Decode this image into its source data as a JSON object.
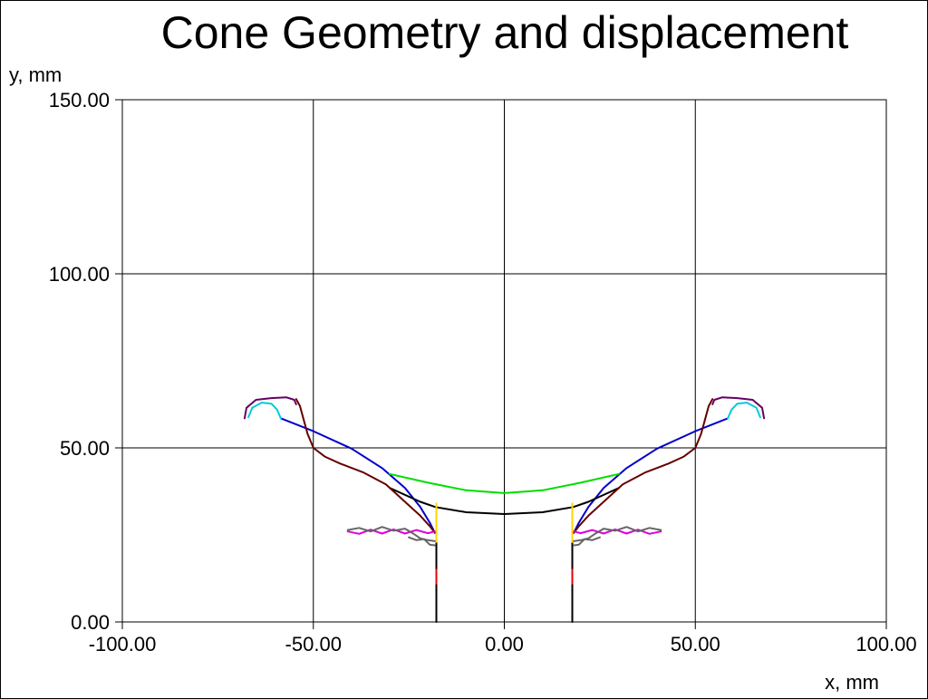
{
  "chart_data": {
    "type": "line",
    "title": "Cone Geometry and displacement",
    "xlabel": "x, mm",
    "ylabel": "y, mm",
    "xlim": [
      -100,
      100
    ],
    "ylim": [
      0,
      150
    ],
    "grid": true,
    "x_ticks": [
      "-100.00",
      "-50.00",
      "0.00",
      "50.00",
      "100.00"
    ],
    "y_ticks": [
      "0.00",
      "50.00",
      "100.00",
      "150.00"
    ],
    "series": [
      {
        "color": "#0000cc",
        "points": [
          [
            -58.5,
            58.5
          ],
          [
            -50,
            54.8
          ],
          [
            -40,
            49.8
          ],
          [
            -32,
            44.2
          ],
          [
            -26,
            38.5
          ],
          [
            -22,
            33
          ],
          [
            -19.5,
            28.5
          ],
          [
            -18.2,
            25.6
          ]
        ]
      },
      {
        "color": "#0000cc",
        "points": [
          [
            58.5,
            58.5
          ],
          [
            50,
            54.8
          ],
          [
            40,
            49.8
          ],
          [
            32,
            44.2
          ],
          [
            26,
            38.5
          ],
          [
            22,
            33
          ],
          [
            19.5,
            28.5
          ],
          [
            18.2,
            25.6
          ]
        ]
      },
      {
        "color": "#00dd00",
        "points": [
          [
            -30,
            42.5
          ],
          [
            -20,
            40
          ],
          [
            -10,
            37.8
          ],
          [
            0,
            37
          ],
          [
            10,
            37.8
          ],
          [
            20,
            40
          ],
          [
            30,
            42.5
          ]
        ]
      },
      {
        "color": "#000000",
        "points": [
          [
            -30,
            38.5
          ],
          [
            -22,
            34.5
          ],
          [
            -18,
            33
          ],
          [
            -10,
            31.5
          ],
          [
            0,
            31
          ],
          [
            10,
            31.5
          ],
          [
            18,
            33
          ],
          [
            22,
            34.5
          ],
          [
            30,
            38.5
          ]
        ]
      },
      {
        "color": "#660000",
        "points": [
          [
            -54.5,
            64
          ],
          [
            -53.5,
            62
          ],
          [
            -52.5,
            58
          ],
          [
            -51.5,
            54
          ],
          [
            -50,
            50
          ],
          [
            -47,
            47.5
          ],
          [
            -43,
            45.5
          ],
          [
            -37,
            43
          ],
          [
            -31,
            39.5
          ],
          [
            -26,
            34.5
          ],
          [
            -22,
            30.5
          ],
          [
            -19.5,
            27.5
          ],
          [
            -18.2,
            25.6
          ]
        ]
      },
      {
        "color": "#660000",
        "points": [
          [
            54.5,
            64
          ],
          [
            53.5,
            62
          ],
          [
            52.5,
            58
          ],
          [
            51.5,
            54
          ],
          [
            50,
            50
          ],
          [
            47,
            47.5
          ],
          [
            43,
            45.5
          ],
          [
            37,
            43
          ],
          [
            31,
            39.5
          ],
          [
            26,
            34.5
          ],
          [
            22,
            30.5
          ],
          [
            19.5,
            27.5
          ],
          [
            18.2,
            25.6
          ]
        ]
      },
      {
        "color": "#660066",
        "points": [
          [
            -68,
            58.5
          ],
          [
            -67.5,
            61.5
          ],
          [
            -65,
            63.8
          ],
          [
            -61,
            64.3
          ],
          [
            -57,
            64.5
          ],
          [
            -55,
            63.8
          ],
          [
            -54.5,
            62.5
          ]
        ]
      },
      {
        "color": "#660066",
        "points": [
          [
            68,
            58.5
          ],
          [
            67.5,
            61.5
          ],
          [
            65,
            63.8
          ],
          [
            61,
            64.3
          ],
          [
            57,
            64.5
          ],
          [
            55,
            63.8
          ],
          [
            54.5,
            62.5
          ]
        ]
      },
      {
        "color": "#00ccdd",
        "points": [
          [
            -67,
            58.8
          ],
          [
            -66,
            61.5
          ],
          [
            -63.5,
            63
          ],
          [
            -61,
            62.7
          ],
          [
            -59.5,
            61
          ],
          [
            -58.5,
            58.5
          ]
        ]
      },
      {
        "color": "#00ccdd",
        "points": [
          [
            67,
            58.8
          ],
          [
            66,
            61.5
          ],
          [
            63.5,
            63
          ],
          [
            61,
            62.7
          ],
          [
            59.5,
            61
          ],
          [
            58.5,
            58.5
          ]
        ]
      },
      {
        "color": "#000000",
        "points": [
          [
            -17.8,
            0
          ],
          [
            -17.8,
            25.6
          ]
        ]
      },
      {
        "color": "#000000",
        "points": [
          [
            17.8,
            0
          ],
          [
            17.8,
            25.6
          ]
        ]
      },
      {
        "color": "#ffd400",
        "points": [
          [
            -17.8,
            34
          ],
          [
            -17.8,
            23
          ]
        ]
      },
      {
        "color": "#ffd400",
        "points": [
          [
            17.8,
            34
          ],
          [
            17.8,
            23
          ]
        ]
      },
      {
        "color": "#ee0000",
        "points": [
          [
            -17.8,
            15
          ],
          [
            -17.8,
            11
          ]
        ]
      },
      {
        "color": "#ee0000",
        "points": [
          [
            17.8,
            15
          ],
          [
            17.8,
            11
          ]
        ]
      },
      {
        "color": "#dd00dd",
        "points": [
          [
            -41,
            26
          ],
          [
            -38,
            25.3
          ],
          [
            -35,
            26.5
          ],
          [
            -32,
            25.4
          ],
          [
            -29,
            26.6
          ],
          [
            -26,
            25.4
          ],
          [
            -23,
            26.4
          ],
          [
            -20,
            25.5
          ],
          [
            -18.2,
            26
          ]
        ]
      },
      {
        "color": "#dd00dd",
        "points": [
          [
            41,
            26
          ],
          [
            38,
            25.3
          ],
          [
            35,
            26.5
          ],
          [
            32,
            25.4
          ],
          [
            29,
            26.6
          ],
          [
            26,
            25.4
          ],
          [
            23,
            26.4
          ],
          [
            20,
            25.5
          ],
          [
            18.2,
            26
          ]
        ]
      },
      {
        "color": "#666666",
        "points": [
          [
            -41,
            26.4
          ],
          [
            -38,
            27
          ],
          [
            -35,
            26
          ],
          [
            -32,
            27.3
          ],
          [
            -29,
            26.2
          ],
          [
            -26,
            26.8
          ],
          [
            -24,
            25.5
          ],
          [
            -22,
            24
          ],
          [
            -20,
            23.5
          ],
          [
            -18.2,
            23.2
          ]
        ]
      },
      {
        "color": "#666666",
        "points": [
          [
            41,
            26.4
          ],
          [
            38,
            27
          ],
          [
            35,
            26
          ],
          [
            32,
            27.3
          ],
          [
            29,
            26.2
          ],
          [
            26,
            26.8
          ],
          [
            24,
            25.5
          ],
          [
            22,
            24
          ],
          [
            20,
            23.5
          ],
          [
            18.2,
            23.2
          ]
        ]
      },
      {
        "color": "#666666",
        "points": [
          [
            -25,
            24.3
          ],
          [
            -23,
            23.5
          ],
          [
            -21,
            23.8
          ],
          [
            -19.5,
            22.2
          ],
          [
            -18.2,
            22
          ]
        ]
      },
      {
        "color": "#666666",
        "points": [
          [
            25,
            24.3
          ],
          [
            23,
            23.5
          ],
          [
            21,
            23.8
          ],
          [
            19.5,
            22.2
          ],
          [
            18.2,
            22
          ]
        ]
      }
    ]
  }
}
